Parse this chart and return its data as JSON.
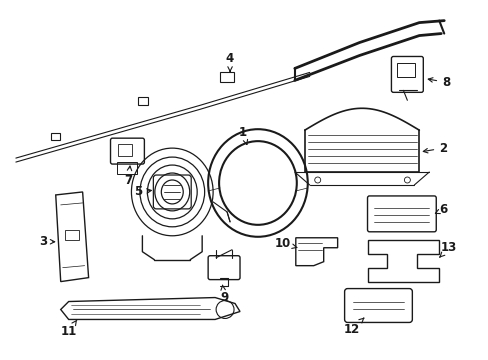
{
  "background_color": "#ffffff",
  "line_color": "#1a1a1a",
  "lw": 1.0,
  "fig_w": 4.89,
  "fig_h": 3.6,
  "dpi": 100
}
